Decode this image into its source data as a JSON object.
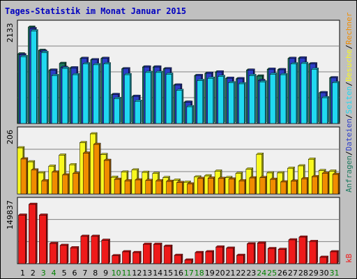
{
  "chart_data": {
    "type": "bar",
    "title": "Tages-Statistik im Monat Januar 2015",
    "x": [
      "1",
      "2",
      "3",
      "4",
      "5",
      "6",
      "7",
      "8",
      "9",
      "10",
      "11",
      "12",
      "13",
      "14",
      "15",
      "16",
      "17",
      "18",
      "19",
      "20",
      "21",
      "22",
      "23",
      "24",
      "25",
      "26",
      "27",
      "28",
      "29",
      "30",
      "31"
    ],
    "weekend_days": [
      "3",
      "4",
      "10",
      "11",
      "17",
      "18",
      "24",
      "25",
      "31"
    ],
    "colors": {
      "frame_bg": "#c0c0c0",
      "plot_bg": "#f0f0f0",
      "title": "#0000c0",
      "weekday_label": "#000000",
      "weekend_label": "#008000",
      "anfragen": "#1e7a60",
      "dateien": "#2d3ec8",
      "seiten": "#20d8f0",
      "besuche": "#f8f820",
      "rechner": "#f08c00",
      "kb": "#ee1a1a"
    },
    "panels": [
      {
        "id": "top",
        "ylim": [
          0,
          2133
        ],
        "max_label": "2133",
        "series": [
          {
            "name": "Anfragen",
            "values": [
              1540,
              2133,
              1620,
              1180,
              1330,
              1230,
              1440,
              1410,
              1440,
              640,
              1210,
              600,
              1250,
              1250,
              1210,
              850,
              470,
              1060,
              1110,
              1140,
              1000,
              990,
              1180,
              1050,
              1200,
              1190,
              1440,
              1450,
              1320,
              680,
              1010
            ]
          },
          {
            "name": "Dateien",
            "values": [
              1520,
              2100,
              1600,
              1180,
              1240,
              1230,
              1440,
              1410,
              1440,
              640,
              1210,
              600,
              1250,
              1250,
              1210,
              850,
              470,
              1060,
              1110,
              1140,
              1000,
              990,
              1180,
              950,
              1200,
              1190,
              1440,
              1450,
              1320,
              680,
              1010
            ]
          },
          {
            "name": "Seiten",
            "values": [
              1480,
              2050,
              1570,
              1060,
              1220,
              1080,
              1320,
              1300,
              1320,
              550,
              1080,
              490,
              1130,
              1130,
              1090,
              730,
              370,
              950,
              1000,
              1040,
              900,
              880,
              1060,
              920,
              1090,
              1080,
              1320,
              1330,
              1200,
              570,
              900
            ]
          }
        ]
      },
      {
        "id": "middle",
        "ylim": [
          0,
          206
        ],
        "max_label": "206",
        "series": [
          {
            "name": "Besuche",
            "values": [
              158,
              110,
              72,
              95,
              133,
              100,
              176,
              206,
              135,
              57,
              75,
              82,
              74,
              70,
              56,
              47,
              40,
              58,
              62,
              78,
              56,
              70,
              85,
              136,
              72,
              72,
              88,
              96,
              119,
              80,
              78
            ]
          },
          {
            "name": "Rechner",
            "values": [
              120,
              82,
              45,
              75,
              65,
              70,
              140,
              170,
              115,
              50,
              45,
              48,
              46,
              45,
              43,
              39,
              34,
              53,
              54,
              53,
              51,
              45,
              55,
              56,
              50,
              41,
              44,
              52,
              59,
              71,
              67
            ]
          }
        ]
      },
      {
        "id": "bottom",
        "ylim": [
          0,
          149837
        ],
        "max_label": "149837",
        "series": [
          {
            "name": "kB",
            "values": [
              122500,
              149837,
              122500,
              51000,
              46000,
              40000,
              69000,
              69000,
              59000,
              20000,
              30000,
              28000,
              49000,
              49000,
              44000,
              21000,
              9000,
              28000,
              30000,
              42000,
              39000,
              21000,
              50000,
              52000,
              38000,
              36000,
              60000,
              67000,
              56000,
              16000,
              30000
            ]
          }
        ]
      }
    ],
    "right_axis": {
      "top": [
        {
          "text": "Anfragen",
          "color": "#1e7a60"
        },
        {
          "text": "/",
          "color": "#000000"
        },
        {
          "text": "Dateien",
          "color": "#2d3ec8"
        },
        {
          "text": "/",
          "color": "#000000"
        },
        {
          "text": "Seiten",
          "color": "#20d8f0"
        },
        {
          "text": "/",
          "color": "#000000"
        },
        {
          "text": "Besuche",
          "color": "#f8f820"
        },
        {
          "text": "/",
          "color": "#000000"
        },
        {
          "text": "Rechner",
          "color": "#f08c00"
        }
      ],
      "bottom": [
        {
          "text": "kB",
          "color": "#ee1a1a"
        }
      ]
    }
  }
}
